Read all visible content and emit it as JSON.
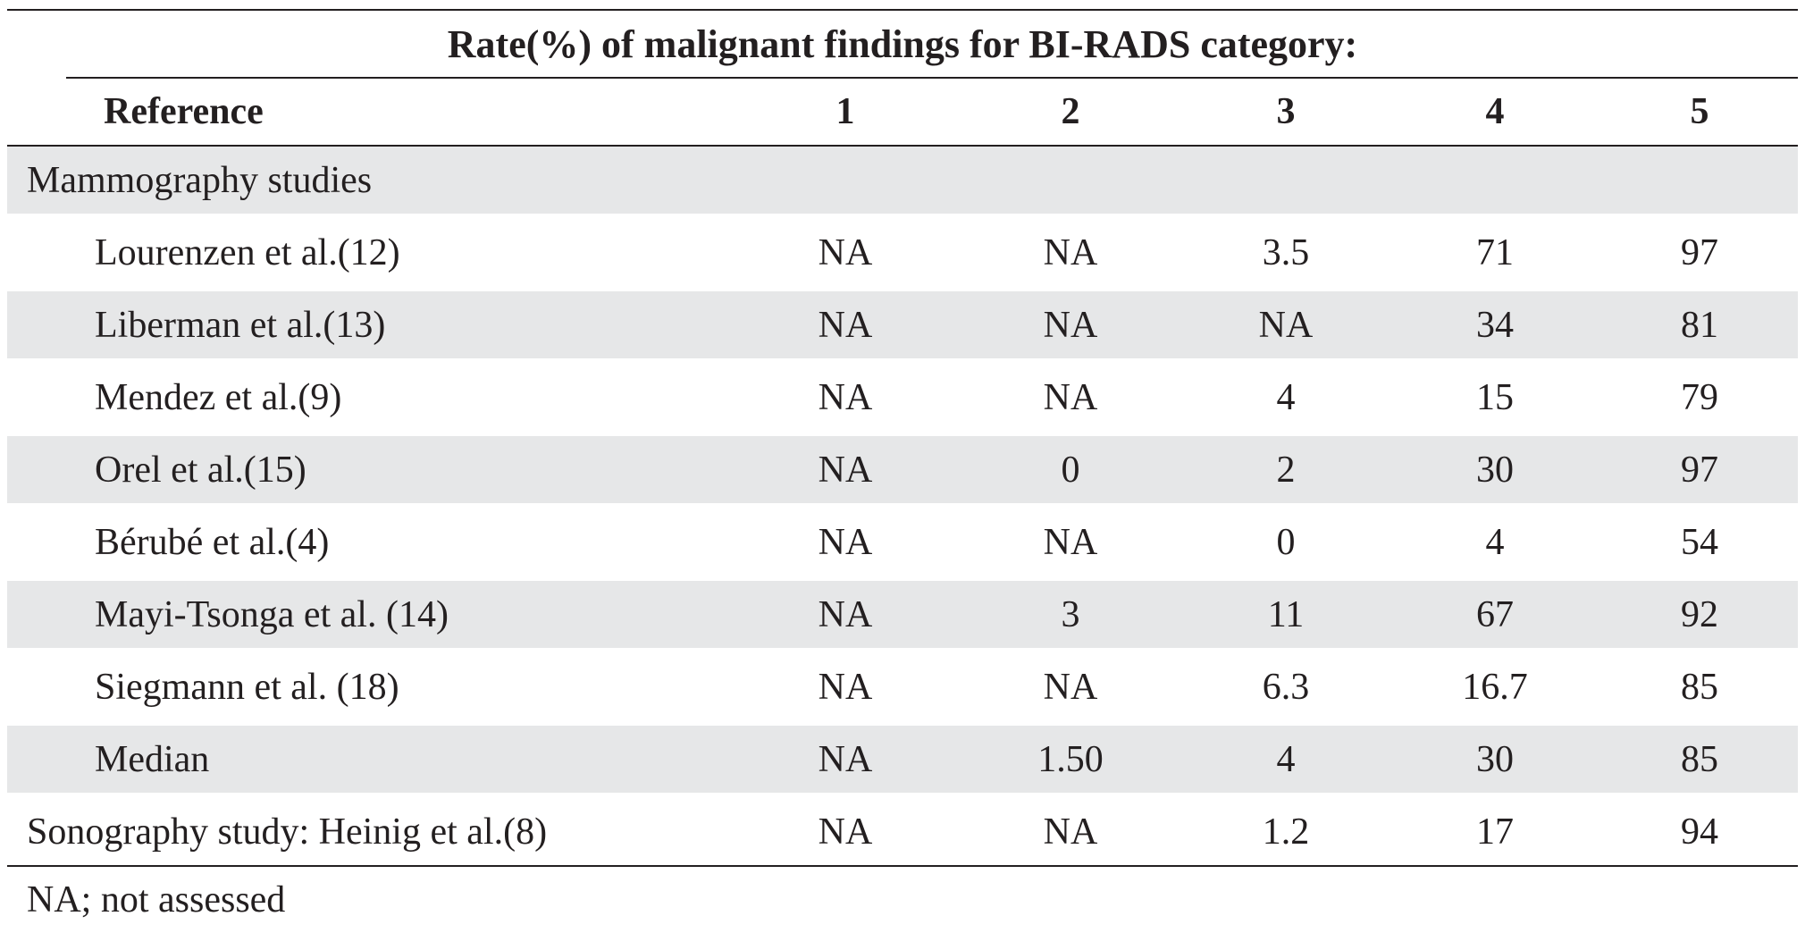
{
  "caption": "Rate(%) of malignant findings for BI-RADS category:",
  "columns": [
    "Reference",
    "1",
    "2",
    "3",
    "4",
    "5"
  ],
  "group_mammography": "Mammography  studies",
  "rows": [
    {
      "ref": "Lourenzen et al.(12)",
      "c1": "NA",
      "c2": "NA",
      "c3": "3.5",
      "c4": "71",
      "c5": "97"
    },
    {
      "ref": "Liberman et al.(13)",
      "c1": "NA",
      "c2": "NA",
      "c3": "NA",
      "c4": "34",
      "c5": "81"
    },
    {
      "ref": "Mendez et al.(9)",
      "c1": "NA",
      "c2": "NA",
      "c3": "4",
      "c4": "15",
      "c5": "79"
    },
    {
      "ref": "Orel et al.(15)",
      "c1": "NA",
      "c2": "0",
      "c3": "2",
      "c4": "30",
      "c5": "97"
    },
    {
      "ref": "Bérubé et al.(4)",
      "c1": "NA",
      "c2": "NA",
      "c3": "0",
      "c4": "4",
      "c5": "54"
    },
    {
      "ref": "Mayi-Tsonga et al. (14)",
      "c1": "NA",
      "c2": "3",
      "c3": "11",
      "c4": "67",
      "c5": "92"
    },
    {
      "ref": "Siegmann et al. (18)",
      "c1": "NA",
      "c2": "NA",
      "c3": "6.3",
      "c4": "16.7",
      "c5": "85"
    },
    {
      "ref": "Median",
      "c1": "NA",
      "c2": "1.50",
      "c3": "4",
      "c4": "30",
      "c5": "85"
    }
  ],
  "sonography": {
    "ref": "Sonography study:  Heinig et al.(8)",
    "c1": "NA",
    "c2": "NA",
    "c3": "1.2",
    "c4": "17",
    "c5": "94"
  },
  "footnote": "NA; not assessed",
  "colors": {
    "shade": "#e6e7e8",
    "text": "#231f20"
  }
}
